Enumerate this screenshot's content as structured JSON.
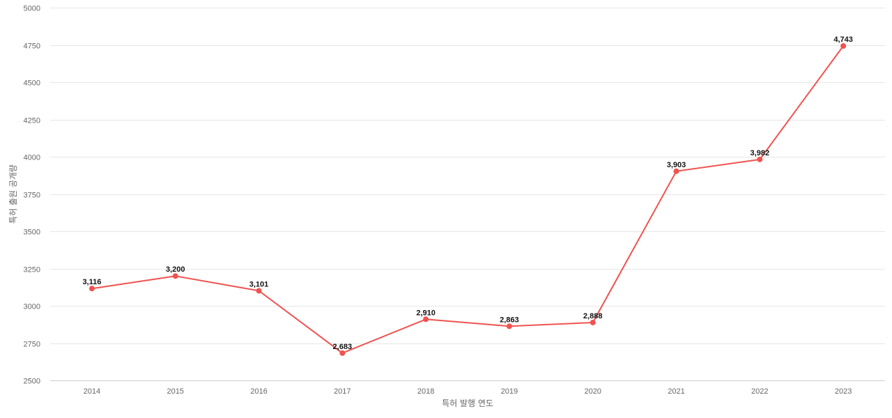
{
  "chart_data": {
    "type": "line",
    "title": "",
    "xlabel": "특허 발행 연도",
    "ylabel": "특허 출원 공개량",
    "categories": [
      "2014",
      "2015",
      "2016",
      "2017",
      "2018",
      "2019",
      "2020",
      "2021",
      "2022",
      "2023"
    ],
    "series": [
      {
        "values": [
          3116,
          3200,
          3101,
          2683,
          2910,
          2863,
          2888,
          3903,
          3982,
          4743
        ],
        "labels": [
          "3,116",
          "3,200",
          "3,101",
          "2,683",
          "2,910",
          "2,863",
          "2,888",
          "3,903",
          "3,982",
          "4,743"
        ],
        "color": "#ef5350"
      }
    ],
    "ylim": [
      2500,
      5000
    ],
    "yticks": [
      "2500",
      "2750",
      "3000",
      "3250",
      "3500",
      "3750",
      "4000",
      "4250",
      "4500",
      "4750",
      "5000"
    ],
    "grid": true,
    "legend": "none"
  }
}
